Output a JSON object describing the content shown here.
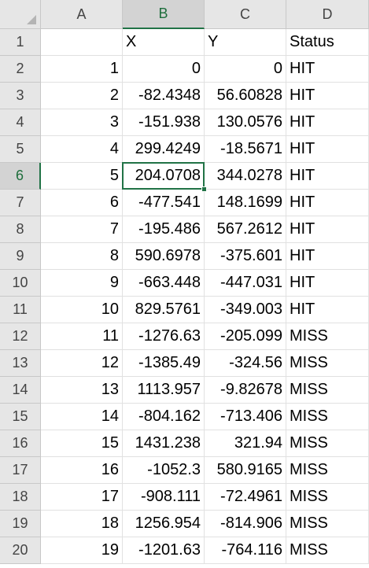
{
  "sheet": {
    "columns": [
      "A",
      "B",
      "C",
      "D"
    ],
    "row_numbers": [
      "1",
      "2",
      "3",
      "4",
      "5",
      "6",
      "7",
      "8",
      "9",
      "10",
      "11",
      "12",
      "13",
      "14",
      "15",
      "16",
      "17",
      "18",
      "19",
      "20"
    ],
    "active_cell": {
      "column": "B",
      "row": "6"
    },
    "rows": [
      [
        "",
        "X",
        "Y",
        "Status"
      ],
      [
        "1",
        "0",
        "0",
        "HIT"
      ],
      [
        "2",
        "-82.4348",
        "56.60828",
        "HIT"
      ],
      [
        "3",
        "-151.938",
        "130.0576",
        "HIT"
      ],
      [
        "4",
        "299.4249",
        "-18.5671",
        "HIT"
      ],
      [
        "5",
        "204.0708",
        "344.0278",
        "HIT"
      ],
      [
        "6",
        "-477.541",
        "148.1699",
        "HIT"
      ],
      [
        "7",
        "-195.486",
        "567.2612",
        "HIT"
      ],
      [
        "8",
        "590.6978",
        "-375.601",
        "HIT"
      ],
      [
        "9",
        "-663.448",
        "-447.031",
        "HIT"
      ],
      [
        "10",
        "829.5761",
        "-349.003",
        "HIT"
      ],
      [
        "11",
        "-1276.63",
        "-205.099",
        "MISS"
      ],
      [
        "12",
        "-1385.49",
        "-324.56",
        "MISS"
      ],
      [
        "13",
        "1113.957",
        "-9.82678",
        "MISS"
      ],
      [
        "14",
        "-804.162",
        "-713.406",
        "MISS"
      ],
      [
        "15",
        "1431.238",
        "321.94",
        "MISS"
      ],
      [
        "16",
        "-1052.3",
        "580.9165",
        "MISS"
      ],
      [
        "17",
        "-908.111",
        "-72.4961",
        "MISS"
      ],
      [
        "18",
        "1256.954",
        "-814.906",
        "MISS"
      ],
      [
        "19",
        "-1201.63",
        "-764.116",
        "MISS"
      ]
    ]
  }
}
